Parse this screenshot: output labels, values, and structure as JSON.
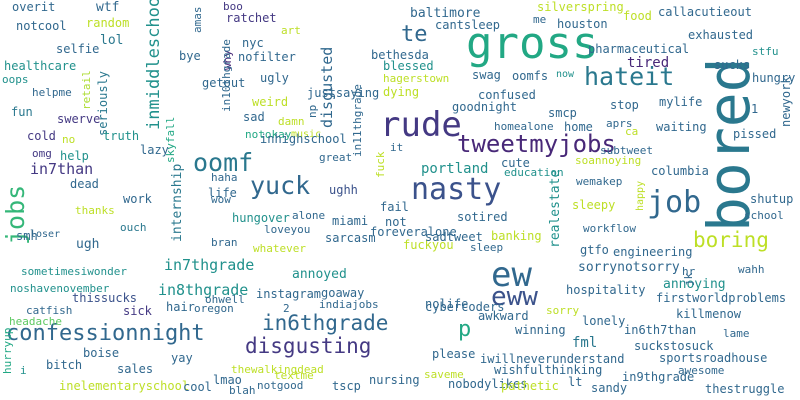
{
  "words": [
    {
      "text": "bored",
      "color": "#2a788e"
    },
    {
      "text": "gross",
      "color": "#22a884"
    },
    {
      "text": "ew",
      "color": "#31688e"
    },
    {
      "text": "eww",
      "color": "#3b528b"
    },
    {
      "text": "rude",
      "color": "#443983"
    },
    {
      "text": "nasty",
      "color": "#3b528b"
    },
    {
      "text": "hateit",
      "color": "#2a788e"
    },
    {
      "text": "job",
      "color": "#31688e"
    },
    {
      "text": "confessionnight",
      "color": "#31688e"
    },
    {
      "text": "tweetmyjobs",
      "color": "#482878"
    },
    {
      "text": "yuck",
      "color": "#31688e"
    },
    {
      "text": "oomf",
      "color": "#2a788e"
    },
    {
      "text": "boring",
      "color": "#bddf26"
    },
    {
      "text": "disgusting",
      "color": "#443983"
    },
    {
      "text": "in6thgrade",
      "color": "#31688e"
    },
    {
      "text": "jobs",
      "color": "#35b779"
    },
    {
      "text": "te",
      "color": "#31688e"
    },
    {
      "text": "p",
      "color": "#22a884"
    },
    {
      "text": "inmiddleschool",
      "color": "#21918c"
    },
    {
      "text": "disgusted",
      "color": "#31688e"
    },
    {
      "text": "in7than",
      "color": "#443983"
    },
    {
      "text": "in7thgrade",
      "color": "#21918c"
    },
    {
      "text": "in8thgrade",
      "color": "#21918c"
    },
    {
      "text": "internship",
      "color": "#2a788e"
    },
    {
      "text": "tired",
      "color": "#482878"
    },
    {
      "text": "fml",
      "color": "#2a788e"
    },
    {
      "text": "portland",
      "color": "#21918c"
    },
    {
      "text": "annoyed",
      "color": "#21918c"
    },
    {
      "text": "sorrynotsorry",
      "color": "#31688e"
    },
    {
      "text": "annoying",
      "color": "#21918c"
    },
    {
      "text": "realestate",
      "color": "#21918c"
    },
    {
      "text": "baltimore",
      "color": "#31688e"
    },
    {
      "text": "overit",
      "color": "#31688e"
    },
    {
      "text": "wtf",
      "color": "#31688e"
    },
    {
      "text": "random",
      "color": "#bddf26"
    },
    {
      "text": "notcool",
      "color": "#31688e"
    },
    {
      "text": "lol",
      "color": "#2a788e"
    },
    {
      "text": "selfie",
      "color": "#31688e"
    },
    {
      "text": "healthcare",
      "color": "#21918c"
    },
    {
      "text": "oops",
      "color": "#21918c"
    },
    {
      "text": "helpme",
      "color": "#31688e"
    },
    {
      "text": "fun",
      "color": "#2a788e"
    },
    {
      "text": "cold",
      "color": "#443983"
    },
    {
      "text": "omg",
      "color": "#443983"
    },
    {
      "text": "swerve",
      "color": "#443983"
    },
    {
      "text": "seriously",
      "color": "#2a788e"
    },
    {
      "text": "retail",
      "color": "#addc30"
    },
    {
      "text": "no",
      "color": "#bddf26"
    },
    {
      "text": "help",
      "color": "#21918c"
    },
    {
      "text": "truth",
      "color": "#21918c"
    },
    {
      "text": "lazy",
      "color": "#31688e"
    },
    {
      "text": "dead",
      "color": "#31688e"
    },
    {
      "text": "thanks",
      "color": "#bddf26"
    },
    {
      "text": "work",
      "color": "#31688e"
    },
    {
      "text": "smh",
      "color": "#31688e"
    },
    {
      "text": "loser",
      "color": "#31688e"
    },
    {
      "text": "ugh",
      "color": "#31688e"
    },
    {
      "text": "ouch",
      "color": "#2a788e"
    },
    {
      "text": "sometimesiwonder",
      "color": "#21918c"
    },
    {
      "text": "noshavenovember",
      "color": "#21918c"
    },
    {
      "text": "thissucks",
      "color": "#3b528b"
    },
    {
      "text": "catfish",
      "color": "#31688e"
    },
    {
      "text": "headache",
      "color": "#5ec962"
    },
    {
      "text": "hurryup",
      "color": "#22a884"
    },
    {
      "text": "bitch",
      "color": "#31688e"
    },
    {
      "text": "boise",
      "color": "#31688e"
    },
    {
      "text": "sick",
      "color": "#443983"
    },
    {
      "text": "yay",
      "color": "#31688e"
    },
    {
      "text": "sales",
      "color": "#31688e"
    },
    {
      "text": "inelementaryschool",
      "color": "#bddf26"
    },
    {
      "text": "cool",
      "color": "#31688e"
    },
    {
      "text": "i",
      "color": "#21918c"
    },
    {
      "text": "boo",
      "color": "#443983"
    },
    {
      "text": "amas",
      "color": "#31688e"
    },
    {
      "text": "ratchet",
      "color": "#443983"
    },
    {
      "text": "bye",
      "color": "#31688e"
    },
    {
      "text": "why",
      "color": "#482878"
    },
    {
      "text": "getout",
      "color": "#31688e"
    },
    {
      "text": "nyc",
      "color": "#31688e"
    },
    {
      "text": "nofilter",
      "color": "#31688e"
    },
    {
      "text": "ugly",
      "color": "#31688e"
    },
    {
      "text": "art",
      "color": "#bddf26"
    },
    {
      "text": "weird",
      "color": "#bddf26"
    },
    {
      "text": "np",
      "color": "#31688e"
    },
    {
      "text": "sad",
      "color": "#31688e"
    },
    {
      "text": "damn",
      "color": "#bddf26"
    },
    {
      "text": "notokay",
      "color": "#22a884"
    },
    {
      "text": "music",
      "color": "#bddf26"
    },
    {
      "text": "skyfall",
      "color": "#22a884"
    },
    {
      "text": "in10thgrade",
      "color": "#31688e"
    },
    {
      "text": "inhighschool",
      "color": "#31688e"
    },
    {
      "text": "haha",
      "color": "#31688e"
    },
    {
      "text": "wow",
      "color": "#31688e"
    },
    {
      "text": "life",
      "color": "#31688e"
    },
    {
      "text": "hungover",
      "color": "#21918c"
    },
    {
      "text": "loveyou",
      "color": "#31688e"
    },
    {
      "text": "whatever",
      "color": "#bddf26"
    },
    {
      "text": "bran",
      "color": "#31688e"
    },
    {
      "text": "alone",
      "color": "#31688e"
    },
    {
      "text": "justsaying",
      "color": "#31688e"
    },
    {
      "text": "great",
      "color": "#31688e"
    },
    {
      "text": "ughh",
      "color": "#3b528b"
    },
    {
      "text": "miami",
      "color": "#31688e"
    },
    {
      "text": "sarcasm",
      "color": "#31688e"
    },
    {
      "text": "in11thgrade",
      "color": "#31688e"
    },
    {
      "text": "it",
      "color": "#31688e"
    },
    {
      "text": "fuck",
      "color": "#bddf26"
    },
    {
      "text": "fail",
      "color": "#31688e"
    },
    {
      "text": "not",
      "color": "#31688e"
    },
    {
      "text": "fuckyou",
      "color": "#bddf26"
    },
    {
      "text": "foreveralone",
      "color": "#31688e"
    },
    {
      "text": "bethesda",
      "color": "#31688e"
    },
    {
      "text": "blessed",
      "color": "#21918c"
    },
    {
      "text": "hagerstown",
      "color": "#bddf26"
    },
    {
      "text": "dying",
      "color": "#bddf26"
    },
    {
      "text": "swag",
      "color": "#31688e"
    },
    {
      "text": "goodnight",
      "color": "#31688e"
    },
    {
      "text": "confused",
      "color": "#31688e"
    },
    {
      "text": "oomfs",
      "color": "#31688e"
    },
    {
      "text": "now",
      "color": "#21918c"
    },
    {
      "text": "cantsleep",
      "color": "#31688e"
    },
    {
      "text": "me",
      "color": "#31688e"
    },
    {
      "text": "houston",
      "color": "#31688e"
    },
    {
      "text": "silverspring",
      "color": "#bddf26"
    },
    {
      "text": "food",
      "color": "#bddf26"
    },
    {
      "text": "callacutieout",
      "color": "#31688e"
    },
    {
      "text": "exhausted",
      "color": "#31688e"
    },
    {
      "text": "pharmaceutical",
      "color": "#31688e"
    },
    {
      "text": "stfu",
      "color": "#21918c"
    },
    {
      "text": "sucks",
      "color": "#31688e"
    },
    {
      "text": "hungry",
      "color": "#31688e"
    },
    {
      "text": "mylife",
      "color": "#31688e"
    },
    {
      "text": "stop",
      "color": "#31688e"
    },
    {
      "text": "smcp",
      "color": "#31688e"
    },
    {
      "text": "homealone",
      "color": "#31688e"
    },
    {
      "text": "home",
      "color": "#31688e"
    },
    {
      "text": "aprs",
      "color": "#31688e"
    },
    {
      "text": "ca",
      "color": "#bddf26"
    },
    {
      "text": "waiting",
      "color": "#31688e"
    },
    {
      "text": "pissed",
      "color": "#31688e"
    },
    {
      "text": "newyork",
      "color": "#31688e"
    },
    {
      "text": "1",
      "color": "#31688e"
    },
    {
      "text": "subtweet",
      "color": "#31688e"
    },
    {
      "text": "soannoying",
      "color": "#bddf26"
    },
    {
      "text": "cute",
      "color": "#31688e"
    },
    {
      "text": "education",
      "color": "#21918c"
    },
    {
      "text": "columbia",
      "color": "#31688e"
    },
    {
      "text": "wemakep",
      "color": "#31688e"
    },
    {
      "text": "sleepy",
      "color": "#bddf26"
    },
    {
      "text": "happy",
      "color": "#bddf26"
    },
    {
      "text": "shutup",
      "color": "#31688e"
    },
    {
      "text": "school",
      "color": "#31688e"
    },
    {
      "text": "sotired",
      "color": "#31688e"
    },
    {
      "text": "sadtweet",
      "color": "#31688e"
    },
    {
      "text": "banking",
      "color": "#bddf26"
    },
    {
      "text": "workflow",
      "color": "#31688e"
    },
    {
      "text": "sleep",
      "color": "#31688e"
    },
    {
      "text": "gtfo",
      "color": "#31688e"
    },
    {
      "text": "engineering",
      "color": "#31688e"
    },
    {
      "text": "hr",
      "color": "#31688e"
    },
    {
      "text": "jk",
      "color": "#31688e"
    },
    {
      "text": "wahh",
      "color": "#31688e"
    },
    {
      "text": "cybercoders",
      "color": "#31688e"
    },
    {
      "text": "hospitality",
      "color": "#31688e"
    },
    {
      "text": "firstworldproblems",
      "color": "#31688e"
    },
    {
      "text": "goaway",
      "color": "#31688e"
    },
    {
      "text": "indiajobs",
      "color": "#31688e"
    },
    {
      "text": "nolife",
      "color": "#31688e"
    },
    {
      "text": "instagram",
      "color": "#31688e"
    },
    {
      "text": "ohwell",
      "color": "#31688e"
    },
    {
      "text": "hair",
      "color": "#31688e"
    },
    {
      "text": "oregon",
      "color": "#31688e"
    },
    {
      "text": "2",
      "color": "#31688e"
    },
    {
      "text": "awkward",
      "color": "#31688e"
    },
    {
      "text": "sorry",
      "color": "#bddf26"
    },
    {
      "text": "lonely",
      "color": "#31688e"
    },
    {
      "text": "killmenow",
      "color": "#31688e"
    },
    {
      "text": "winning",
      "color": "#31688e"
    },
    {
      "text": "in6th7than",
      "color": "#31688e"
    },
    {
      "text": "lame",
      "color": "#31688e"
    },
    {
      "text": "suckstosuck",
      "color": "#31688e"
    },
    {
      "text": "please",
      "color": "#31688e"
    },
    {
      "text": "iwillneverunderstand",
      "color": "#31688e"
    },
    {
      "text": "sportsroadhouse",
      "color": "#31688e"
    },
    {
      "text": "wishfulthinking",
      "color": "#31688e"
    },
    {
      "text": "awesome",
      "color": "#31688e"
    },
    {
      "text": "in9thgrade",
      "color": "#31688e"
    },
    {
      "text": "thewalkingdead",
      "color": "#bddf26"
    },
    {
      "text": "textme",
      "color": "#bddf26"
    },
    {
      "text": "lmao",
      "color": "#31688e"
    },
    {
      "text": "saveme",
      "color": "#bddf26"
    },
    {
      "text": "nursing",
      "color": "#31688e"
    },
    {
      "text": "nobodylikes",
      "color": "#31688e"
    },
    {
      "text": "pathetic",
      "color": "#bddf26"
    },
    {
      "text": "lt",
      "color": "#31688e"
    },
    {
      "text": "sandy",
      "color": "#31688e"
    },
    {
      "text": "thestruggle",
      "color": "#31688e"
    },
    {
      "text": "blah",
      "color": "#31688e"
    },
    {
      "text": "notgood",
      "color": "#31688e"
    },
    {
      "text": "tscp",
      "color": "#31688e"
    }
  ]
}
